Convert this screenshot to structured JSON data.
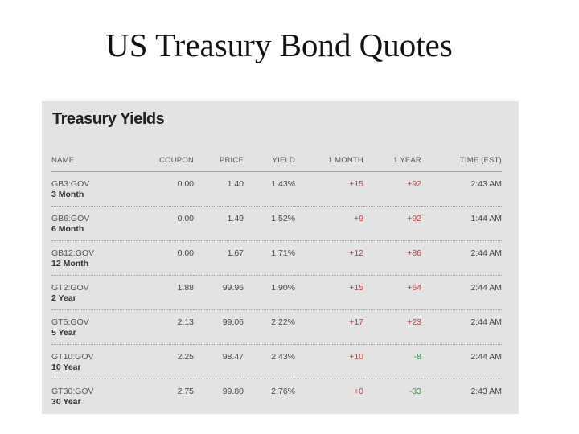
{
  "slide": {
    "title": "US Treasury Bond Quotes"
  },
  "panel": {
    "heading": "Treasury Yields",
    "columns": [
      "NAME",
      "COUPON",
      "PRICE",
      "YIELD",
      "1 MONTH",
      "1 YEAR",
      "TIME (EST)"
    ],
    "rows": [
      {
        "ticker": "GB3:GOV",
        "term": "3 Month",
        "coupon": "0.00",
        "price": "1.40",
        "yield": "1.43%",
        "month": "+15",
        "year": "+92",
        "time": "2:43 AM"
      },
      {
        "ticker": "GB6:GOV",
        "term": "6 Month",
        "coupon": "0.00",
        "price": "1.49",
        "yield": "1.52%",
        "month": "+9",
        "year": "+92",
        "time": "1:44 AM"
      },
      {
        "ticker": "GB12:GOV",
        "term": "12 Month",
        "coupon": "0.00",
        "price": "1.67",
        "yield": "1.71%",
        "month": "+12",
        "year": "+86",
        "time": "2:44 AM"
      },
      {
        "ticker": "GT2:GOV",
        "term": "2 Year",
        "coupon": "1.88",
        "price": "99.96",
        "yield": "1.90%",
        "month": "+15",
        "year": "+64",
        "time": "2:44 AM"
      },
      {
        "ticker": "GT5:GOV",
        "term": "5 Year",
        "coupon": "2.13",
        "price": "99.06",
        "yield": "2.22%",
        "month": "+17",
        "year": "+23",
        "time": "2:44 AM"
      },
      {
        "ticker": "GT10:GOV",
        "term": "10 Year",
        "coupon": "2.25",
        "price": "98.47",
        "yield": "2.43%",
        "month": "+10",
        "year": "-8",
        "time": "2:44 AM"
      },
      {
        "ticker": "GT30:GOV",
        "term": "30 Year",
        "coupon": "2.75",
        "price": "99.80",
        "yield": "2.76%",
        "month": "+0",
        "year": "-33",
        "time": "2:43 AM"
      }
    ]
  },
  "colors": {
    "positive": "#cc3333",
    "negative": "#2e9a4a",
    "panel_bg": "#e3e3e3"
  }
}
